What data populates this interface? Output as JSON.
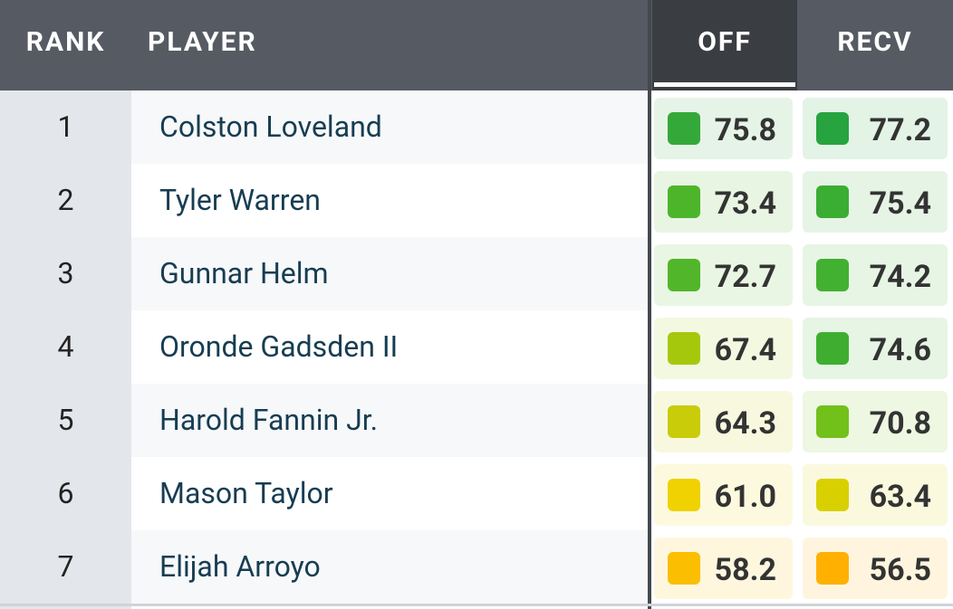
{
  "table": {
    "columns": [
      "RANK",
      "PLAYER",
      "OFF",
      "RECV"
    ],
    "rows": [
      {
        "rank": 1,
        "player": "Colston Loveland",
        "off": {
          "value": "75.8",
          "color": "#35a83a"
        },
        "recv": {
          "value": "77.2",
          "color": "#27a33f"
        }
      },
      {
        "rank": 2,
        "player": "Tyler Warren",
        "off": {
          "value": "73.4",
          "color": "#4cb52a"
        },
        "recv": {
          "value": "75.4",
          "color": "#3aad33"
        }
      },
      {
        "rank": 3,
        "player": "Gunnar Helm",
        "off": {
          "value": "72.7",
          "color": "#52b62a"
        },
        "recv": {
          "value": "74.2",
          "color": "#42b030"
        }
      },
      {
        "rank": 4,
        "player": "Oronde Gadsden II",
        "off": {
          "value": "67.4",
          "color": "#a6c80c"
        },
        "recv": {
          "value": "74.6",
          "color": "#3fae30"
        }
      },
      {
        "rank": 5,
        "player": "Harold Fannin Jr.",
        "off": {
          "value": "64.3",
          "color": "#c9cc08"
        },
        "recv": {
          "value": "70.8",
          "color": "#72c01a"
        }
      },
      {
        "rank": 6,
        "player": "Mason Taylor",
        "off": {
          "value": "61.0",
          "color": "#f0d200"
        },
        "recv": {
          "value": "63.4",
          "color": "#d8d000"
        }
      },
      {
        "rank": 7,
        "player": "Elijah Arroyo",
        "off": {
          "value": "58.2",
          "color": "#fbbe00"
        },
        "recv": {
          "value": "56.5",
          "color": "#ffb000"
        }
      }
    ]
  }
}
